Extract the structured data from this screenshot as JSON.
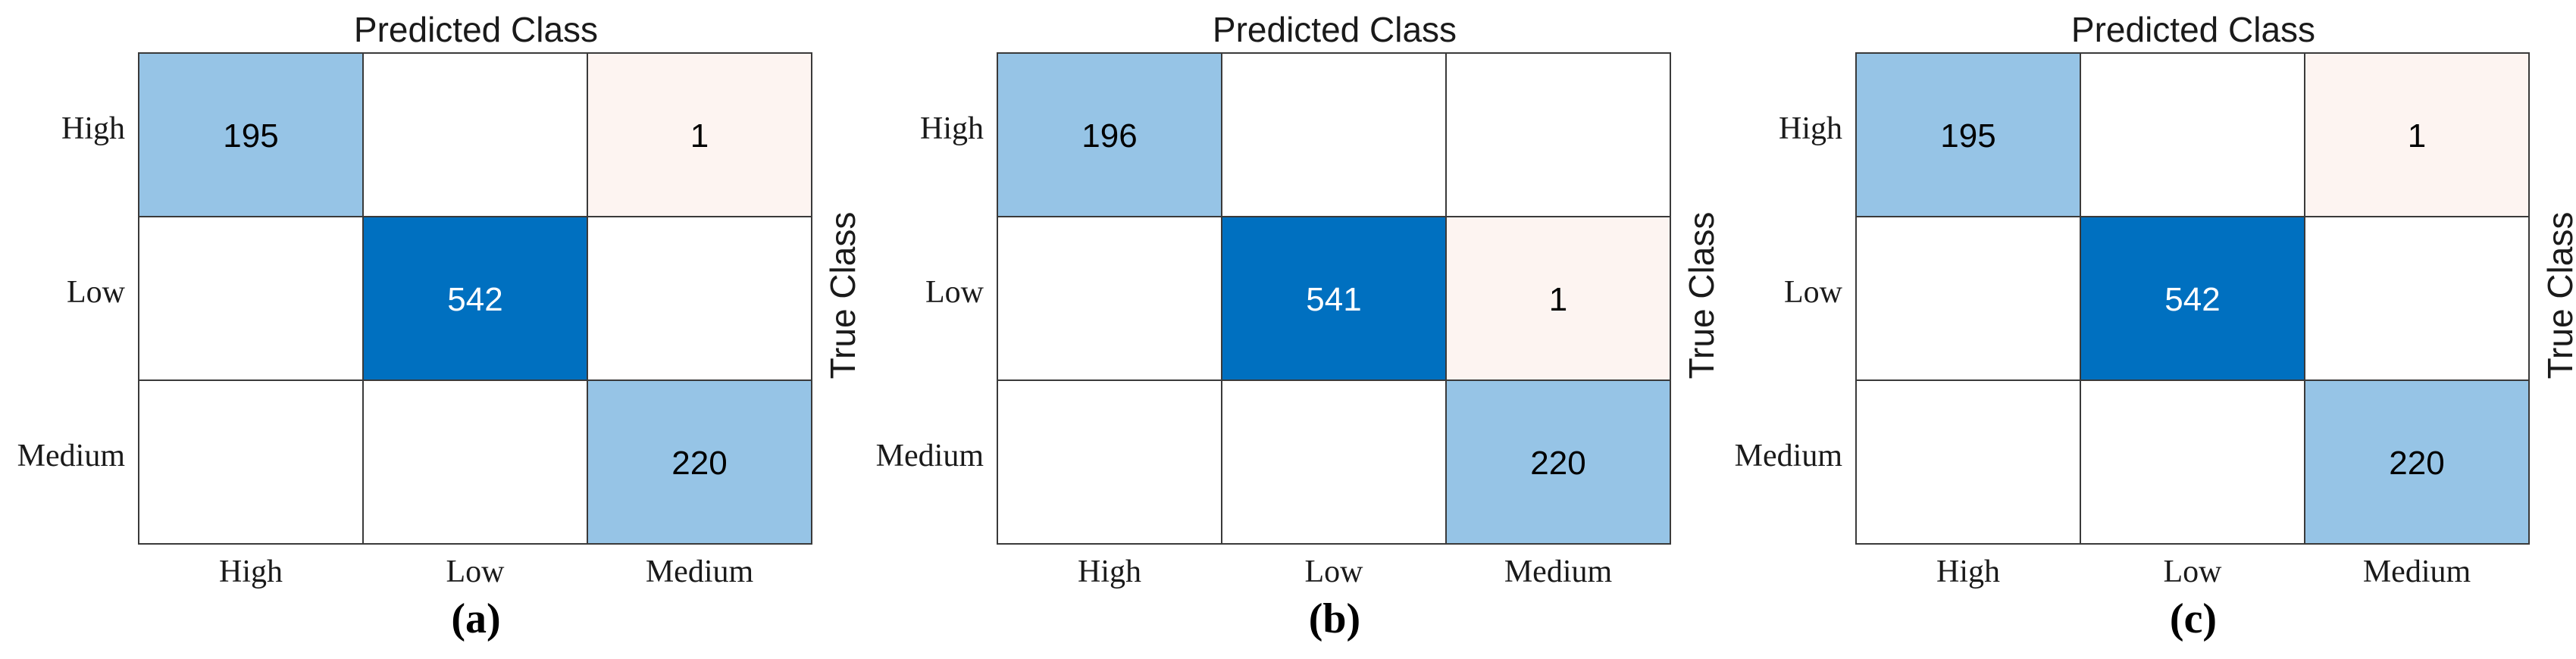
{
  "chart_data": [
    {
      "type": "heatmap",
      "title": "Predicted Class",
      "ylabel": "True Class",
      "caption": "(a)",
      "rows": [
        "High",
        "Low",
        "Medium"
      ],
      "cols": [
        "High",
        "Low",
        "Medium"
      ],
      "matrix": [
        [
          195,
          null,
          1
        ],
        [
          null,
          542,
          null
        ],
        [
          null,
          null,
          220
        ]
      ]
    },
    {
      "type": "heatmap",
      "title": "Predicted Class",
      "ylabel": "True Class",
      "caption": "(b)",
      "rows": [
        "High",
        "Low",
        "Medium"
      ],
      "cols": [
        "High",
        "Low",
        "Medium"
      ],
      "matrix": [
        [
          196,
          null,
          null
        ],
        [
          null,
          541,
          1
        ],
        [
          null,
          null,
          220
        ]
      ]
    },
    {
      "type": "heatmap",
      "title": "Predicted Class",
      "ylabel": "True Class",
      "caption": "(c)",
      "rows": [
        "High",
        "Low",
        "Medium"
      ],
      "cols": [
        "High",
        "Low",
        "Medium"
      ],
      "matrix": [
        [
          195,
          null,
          1
        ],
        [
          null,
          542,
          null
        ],
        [
          null,
          null,
          220
        ]
      ]
    }
  ],
  "colors": {
    "diag_dark": "#0070c0",
    "diag_light": "#96c4e6",
    "offdiag": "#fdf4f1",
    "empty": "#ffffff",
    "grid": "#3a3a3a"
  }
}
